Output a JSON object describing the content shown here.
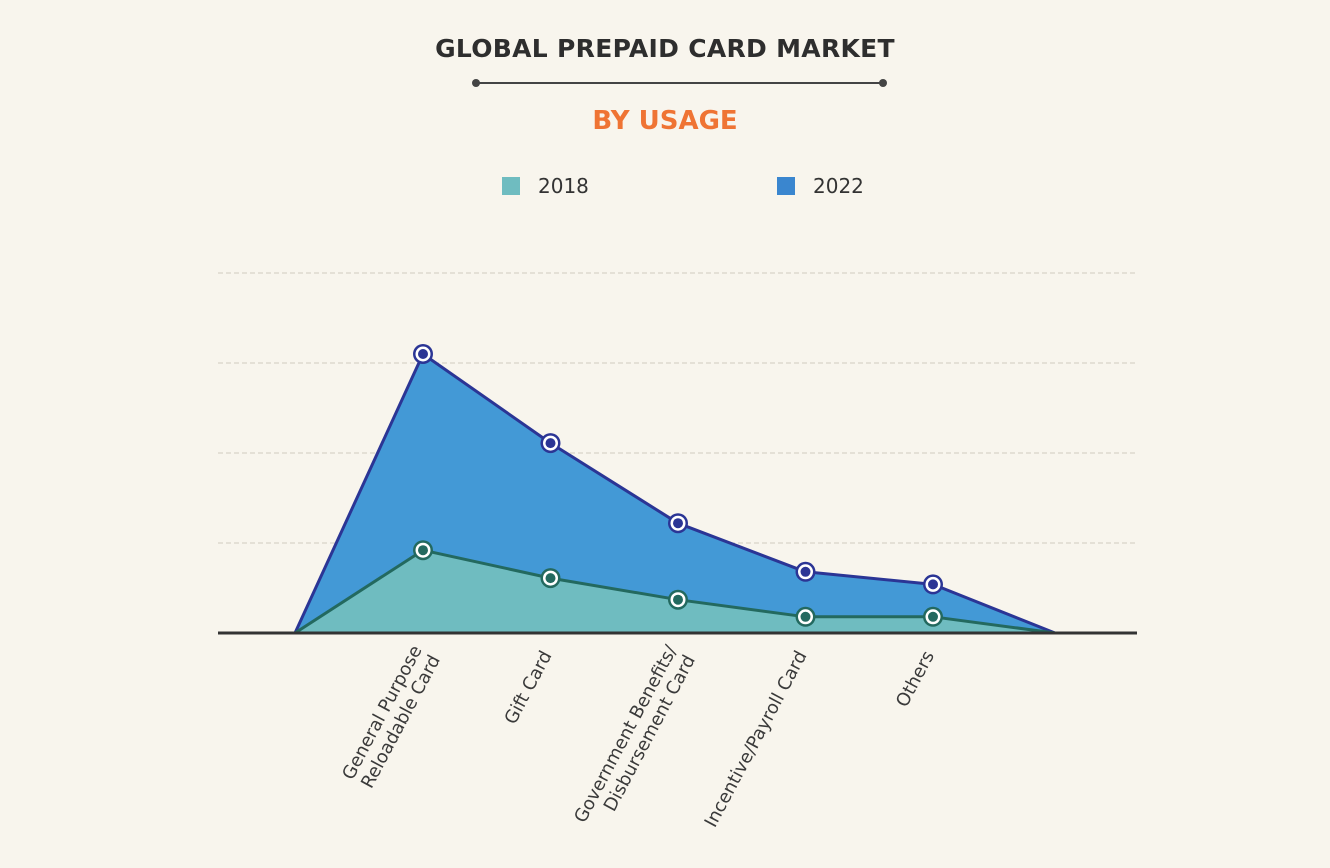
{
  "chart_data": {
    "type": "area",
    "title": "GLOBAL PREPAID CARD MARKET",
    "subtitle": "BY USAGE",
    "categories": [
      "General Purpose Reloadable Card",
      "Gift Card",
      "Government Benefits/ Disbursement Card",
      "Incentive/Payroll Card",
      "Others"
    ],
    "category_lines": [
      [
        "General Purpose",
        "Reloadable Card"
      ],
      [
        "Gift Card"
      ],
      [
        "Government Benefits/",
        "Disbursement Card"
      ],
      [
        "Incentive/Payroll Card"
      ],
      [
        "Others"
      ]
    ],
    "series": [
      {
        "name": "2018",
        "values": [
          0.92,
          0.61,
          0.37,
          0.18,
          0.18
        ],
        "color": "#6fbcc0",
        "line": "#23695f"
      },
      {
        "name": "2022",
        "values": [
          3.1,
          2.11,
          1.22,
          0.68,
          0.54
        ],
        "color": "#4399d6",
        "line": "#2b3595"
      }
    ],
    "xlabel": "",
    "ylabel": "",
    "ylim": [
      0,
      4
    ],
    "y_tick_labels": "none",
    "grid": true,
    "legend_position": "top"
  }
}
